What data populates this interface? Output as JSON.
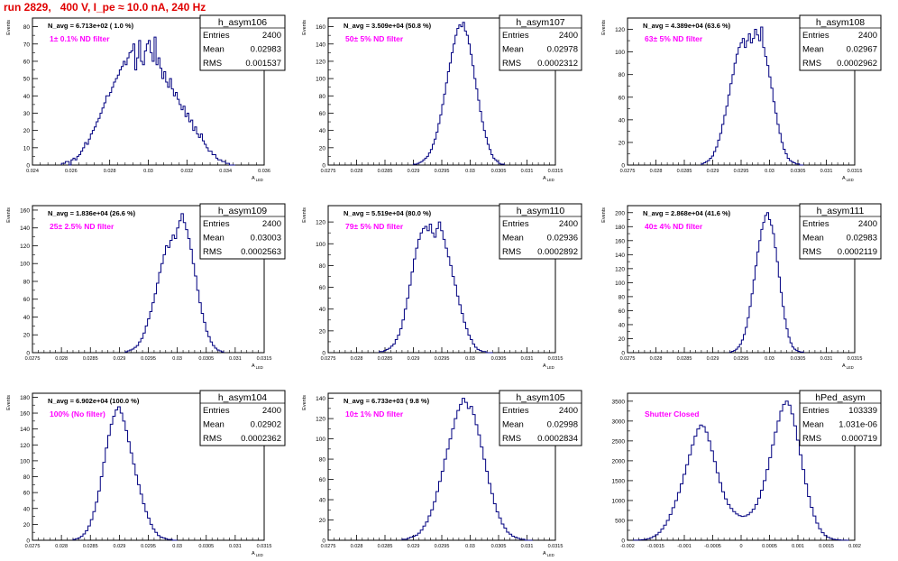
{
  "page": {
    "title": "run 2829,   400 V, I_pe ≈ 10.0 nA, 240 Hz",
    "title_color": "#e00000",
    "hist_color": "#000080",
    "annotation_color": "#ff00ff"
  },
  "chart_data": [
    {
      "type": "bar",
      "name": "h_asym106",
      "navg": "N_avg = 6.713e+02 ( 1.0 %)",
      "annotation": "1± 0.1% ND filter",
      "stats": {
        "Entries": "2400",
        "Mean": "0.02983",
        "RMS": "0.001537"
      },
      "ylabel": "Events",
      "xlabel": "A_LED",
      "xlim": [
        0.024,
        0.036
      ],
      "ylim": [
        0,
        85
      ],
      "xticks": [
        "0.024",
        "0.026",
        "0.028",
        "0.03",
        "0.032",
        "0.034",
        "0.036"
      ],
      "yticks": [
        0,
        10,
        20,
        30,
        40,
        50,
        60,
        70,
        80
      ],
      "x_range": [
        0.0255,
        0.0345
      ],
      "values": [
        1,
        1,
        2,
        2,
        0,
        3,
        4,
        3,
        5,
        6,
        8,
        10,
        13,
        12,
        15,
        18,
        20,
        22,
        25,
        27,
        30,
        33,
        36,
        40,
        40,
        42,
        45,
        48,
        50,
        52,
        55,
        57,
        60,
        58,
        62,
        65,
        66,
        70,
        55,
        62,
        72,
        60,
        58,
        66,
        70,
        72,
        65,
        60,
        74,
        58,
        62,
        56,
        50,
        54,
        48,
        45,
        50,
        44,
        40,
        42,
        38,
        35,
        32,
        34,
        28,
        30,
        25,
        26,
        20,
        22,
        18,
        16,
        18,
        14,
        12,
        10,
        8,
        8,
        6,
        6,
        4,
        3,
        3,
        2,
        2,
        1,
        1,
        0,
        0,
        0
      ]
    },
    {
      "type": "bar",
      "name": "h_asym107",
      "navg": "N_avg = 3.509e+04 (50.8 %)",
      "annotation": "50± 5% ND filter",
      "stats": {
        "Entries": "2400",
        "Mean": "0.02978",
        "RMS": "0.0002312"
      },
      "ylabel": "Events",
      "xlabel": "A_LED",
      "xlim": [
        0.0275,
        0.0315
      ],
      "ylim": [
        0,
        170
      ],
      "xticks": [
        "0.0275",
        "0.028",
        "0.0285",
        "0.029",
        "0.0295",
        "0.03",
        "0.0305",
        "0.031",
        "0.0315"
      ],
      "yticks": [
        0,
        20,
        40,
        60,
        80,
        100,
        120,
        140,
        160
      ],
      "x_range": [
        0.029,
        0.0306
      ],
      "values": [
        1,
        1,
        2,
        3,
        4,
        6,
        8,
        10,
        14,
        18,
        24,
        30,
        38,
        48,
        58,
        70,
        82,
        95,
        108,
        118,
        130,
        140,
        150,
        158,
        162,
        160,
        165,
        155,
        150,
        140,
        128,
        115,
        100,
        88,
        75,
        62,
        50,
        40,
        32,
        24,
        18,
        12,
        8,
        6,
        4,
        2,
        1,
        1
      ]
    },
    {
      "type": "bar",
      "name": "h_asym108",
      "navg": "N_avg = 4.389e+04 (63.6 %)",
      "annotation": "63± 5% ND filter",
      "stats": {
        "Entries": "2400",
        "Mean": "0.02967",
        "RMS": "0.0002962"
      },
      "ylabel": "Events",
      "xlabel": "A_LED",
      "xlim": [
        0.0275,
        0.0315
      ],
      "ylim": [
        0,
        130
      ],
      "xticks": [
        "0.0275",
        "0.028",
        "0.0285",
        "0.029",
        "0.0295",
        "0.03",
        "0.0305",
        "0.031",
        "0.0315"
      ],
      "yticks": [
        0,
        20,
        40,
        60,
        80,
        100,
        120
      ],
      "x_range": [
        0.0288,
        0.0306
      ],
      "values": [
        1,
        2,
        3,
        4,
        6,
        8,
        12,
        16,
        22,
        28,
        36,
        44,
        52,
        62,
        72,
        80,
        90,
        98,
        104,
        108,
        112,
        104,
        110,
        116,
        108,
        112,
        120,
        115,
        110,
        122,
        104,
        96,
        88,
        78,
        68,
        56,
        46,
        36,
        28,
        20,
        14,
        10,
        6,
        4,
        3,
        2,
        1,
        1,
        0,
        0
      ]
    },
    {
      "type": "bar",
      "name": "h_asym109",
      "navg": "N_avg = 1.836e+04 (26.6 %)",
      "annotation": "25± 2.5% ND filter",
      "stats": {
        "Entries": "2400",
        "Mean": "0.03003",
        "RMS": "0.0002563"
      },
      "ylabel": "Events",
      "xlabel": "A_LED",
      "xlim": [
        0.0275,
        0.0315
      ],
      "ylim": [
        0,
        165
      ],
      "xticks": [
        "0.0275",
        "0.028",
        "0.0285",
        "0.029",
        "0.0295",
        "0.03",
        "0.0305",
        "0.031",
        "0.0315"
      ],
      "yticks": [
        0,
        20,
        40,
        60,
        80,
        100,
        120,
        140,
        160
      ],
      "x_range": [
        0.0291,
        0.0308
      ],
      "values": [
        1,
        2,
        3,
        4,
        6,
        8,
        12,
        16,
        22,
        30,
        38,
        46,
        56,
        66,
        78,
        90,
        100,
        110,
        120,
        118,
        126,
        132,
        128,
        140,
        148,
        156,
        146,
        138,
        128,
        116,
        100,
        86,
        70,
        56,
        44,
        34,
        24,
        18,
        12,
        8,
        5,
        3,
        2,
        1
      ]
    },
    {
      "type": "bar",
      "name": "h_asym110",
      "navg": "N_avg = 5.519e+04 (80.0 %)",
      "annotation": "79± 5% ND filter",
      "stats": {
        "Entries": "2400",
        "Mean": "0.02936",
        "RMS": "0.0002892"
      },
      "ylabel": "Events",
      "xlabel": "A_LED",
      "xlim": [
        0.0275,
        0.0315
      ],
      "ylim": [
        0,
        135
      ],
      "xticks": [
        "0.0275",
        "0.028",
        "0.0285",
        "0.029",
        "0.0295",
        "0.03",
        "0.0305",
        "0.031",
        "0.0315"
      ],
      "yticks": [
        0,
        20,
        40,
        60,
        80,
        100,
        120
      ],
      "x_range": [
        0.0284,
        0.0304
      ],
      "values": [
        1,
        1,
        2,
        3,
        4,
        6,
        8,
        12,
        16,
        22,
        30,
        40,
        50,
        62,
        74,
        86,
        96,
        104,
        110,
        114,
        116,
        112,
        118,
        110,
        106,
        114,
        120,
        112,
        104,
        96,
        88,
        80,
        70,
        62,
        52,
        44,
        36,
        28,
        22,
        16,
        12,
        8,
        5,
        3,
        2,
        1,
        1,
        0,
        0,
        0
      ]
    },
    {
      "type": "bar",
      "name": "h_asym111",
      "navg": "N_avg = 2.868e+04 (41.6 %)",
      "annotation": "40± 4% ND filter",
      "stats": {
        "Entries": "2400",
        "Mean": "0.02983",
        "RMS": "0.0002119"
      },
      "ylabel": "Events",
      "xlabel": "A_LED",
      "xlim": [
        0.0275,
        0.0315
      ],
      "ylim": [
        0,
        210
      ],
      "xticks": [
        "0.0275",
        "0.028",
        "0.0285",
        "0.029",
        "0.0295",
        "0.03",
        "0.0305",
        "0.031",
        "0.0315"
      ],
      "yticks": [
        0,
        20,
        40,
        60,
        80,
        100,
        120,
        140,
        160,
        180,
        200
      ],
      "x_range": [
        0.0293,
        0.0306
      ],
      "values": [
        1,
        2,
        3,
        5,
        8,
        12,
        18,
        26,
        36,
        50,
        66,
        84,
        104,
        124,
        144,
        160,
        176,
        186,
        196,
        200,
        190,
        182,
        170,
        150,
        130,
        108,
        86,
        66,
        48,
        34,
        22,
        14,
        8,
        5,
        3,
        2,
        1,
        1
      ]
    },
    {
      "type": "bar",
      "name": "h_asym104",
      "navg": "N_avg = 6.902e+04 (100.0 %)",
      "annotation": "100% (No filter)",
      "stats": {
        "Entries": "2400",
        "Mean": "0.02902",
        "RMS": "0.0002362"
      },
      "ylabel": "Events",
      "xlabel": "A_LED",
      "xlim": [
        0.0275,
        0.0315
      ],
      "ylim": [
        0,
        185
      ],
      "xticks": [
        "0.0275",
        "0.028",
        "0.0285",
        "0.029",
        "0.0295",
        "0.03",
        "0.0305",
        "0.031",
        "0.0315"
      ],
      "yticks": [
        0,
        20,
        40,
        60,
        80,
        100,
        120,
        140,
        160,
        180
      ],
      "x_range": [
        0.0282,
        0.03
      ],
      "values": [
        1,
        2,
        3,
        5,
        8,
        12,
        18,
        26,
        36,
        48,
        62,
        80,
        98,
        116,
        132,
        146,
        156,
        164,
        168,
        160,
        150,
        138,
        124,
        110,
        96,
        82,
        70,
        58,
        46,
        36,
        28,
        20,
        14,
        10,
        6,
        4,
        3,
        2,
        1,
        1,
        0,
        0
      ]
    },
    {
      "type": "bar",
      "name": "h_asym105",
      "navg": "N_avg = 6.733e+03 ( 9.8 %)",
      "annotation": "10± 1% ND filter",
      "stats": {
        "Entries": "2400",
        "Mean": "0.02998",
        "RMS": "0.0002834"
      },
      "ylabel": "Events",
      "xlabel": "A_LED",
      "xlim": [
        0.0275,
        0.0315
      ],
      "ylim": [
        0,
        145
      ],
      "xticks": [
        "0.0275",
        "0.028",
        "0.0285",
        "0.029",
        "0.0295",
        "0.03",
        "0.0305",
        "0.031",
        "0.0315"
      ],
      "yticks": [
        0,
        20,
        40,
        60,
        80,
        100,
        120,
        140
      ],
      "x_range": [
        0.0288,
        0.0311
      ],
      "values": [
        1,
        1,
        2,
        3,
        4,
        5,
        7,
        10,
        14,
        18,
        24,
        30,
        38,
        48,
        58,
        68,
        80,
        90,
        100,
        110,
        120,
        128,
        134,
        140,
        136,
        130,
        132,
        124,
        114,
        104,
        92,
        80,
        68,
        56,
        46,
        36,
        28,
        22,
        16,
        12,
        8,
        6,
        4,
        3,
        2,
        1,
        1,
        0,
        0,
        0
      ]
    },
    {
      "type": "bar",
      "name": "hPed_asym",
      "navg": "",
      "annotation": "Shutter Closed",
      "stats": {
        "Entries": "103339",
        "Mean": "1.031e-06",
        "RMS": "0.000719"
      },
      "ylabel": "",
      "xlabel": "",
      "xlim": [
        -0.002,
        0.002
      ],
      "ylim": [
        0,
        3700
      ],
      "xticks": [
        "-0.002",
        "-0.0015",
        "-0.001",
        "-0.0005",
        "0",
        "0.0005",
        "0.001",
        "0.0015",
        "0.002"
      ],
      "yticks": [
        0,
        500,
        1000,
        1500,
        2000,
        2500,
        3000,
        3500
      ],
      "x_range": [
        -0.0019,
        0.0019
      ],
      "values": [
        2,
        4,
        8,
        14,
        24,
        40,
        62,
        95,
        140,
        200,
        280,
        380,
        500,
        650,
        820,
        1000,
        1200,
        1420,
        1660,
        1900,
        2150,
        2400,
        2620,
        2800,
        2900,
        2860,
        2720,
        2500,
        2250,
        1980,
        1700,
        1450,
        1220,
        1040,
        900,
        800,
        720,
        660,
        620,
        600,
        610,
        640,
        700,
        780,
        900,
        1060,
        1260,
        1500,
        1780,
        2080,
        2400,
        2720,
        3000,
        3250,
        3420,
        3500,
        3400,
        3180,
        2880,
        2520,
        2150,
        1780,
        1420,
        1100,
        830,
        610,
        430,
        290,
        190,
        120,
        74,
        44,
        26,
        14,
        8,
        4,
        2,
        1
      ]
    }
  ]
}
